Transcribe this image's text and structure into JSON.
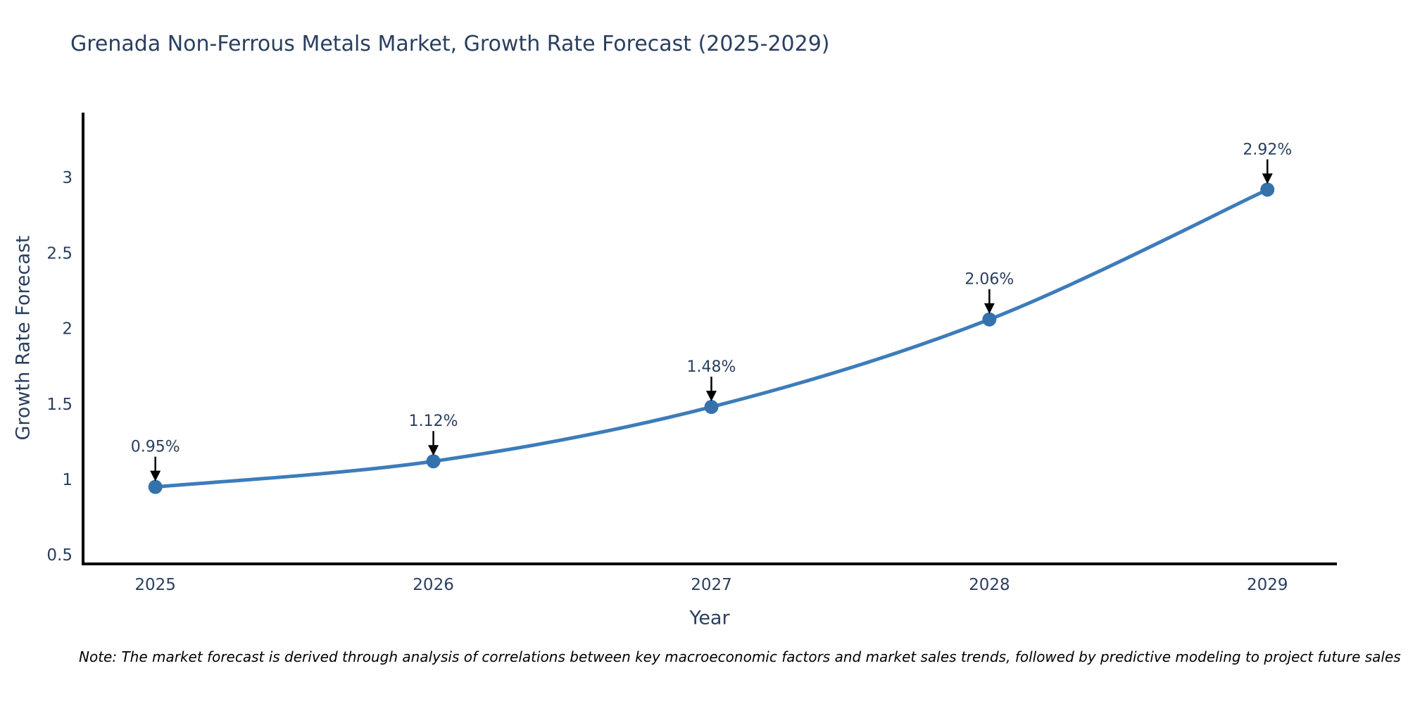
{
  "chart_data": {
    "type": "line",
    "title": "Grenada Non-Ferrous Metals Market, Growth Rate Forecast (2025-2029)",
    "xlabel": "Year",
    "ylabel": "Growth Rate Forecast",
    "note": "Note: The market forecast is derived through analysis of correlations between key macroeconomic factors and market sales trends, followed by predictive modeling to project future sales",
    "series": [
      {
        "name": "Growth Rate Forecast",
        "x": [
          2025,
          2026,
          2027,
          2028,
          2029
        ],
        "y": [
          0.95,
          1.12,
          1.48,
          2.06,
          2.92
        ],
        "point_labels": [
          "0.95%",
          "1.12%",
          "1.48%",
          "2.06%",
          "2.92%"
        ]
      }
    ],
    "xticks": {
      "values": [
        2025,
        2026,
        2027,
        2028,
        2029
      ],
      "labels": [
        "2025",
        "2026",
        "2027",
        "2028",
        "2029"
      ]
    },
    "yticks": {
      "values": [
        0.5,
        1,
        1.5,
        2,
        2.5,
        3
      ],
      "labels": [
        "0.5",
        "1",
        "1.5",
        "2",
        "2.5",
        "3"
      ]
    },
    "xrange": [
      2024.74,
      2029.25
    ],
    "yrange": [
      0.44,
      3.43
    ],
    "grid": false,
    "legend": "none",
    "line_smoothing": true,
    "colors": {
      "line": "#3d7cba",
      "marker": "#3572ac",
      "axis": "#000000",
      "arrow": "#000000",
      "text": "#2a3f5f",
      "note_text": "#000000",
      "background": "#ffffff"
    }
  }
}
